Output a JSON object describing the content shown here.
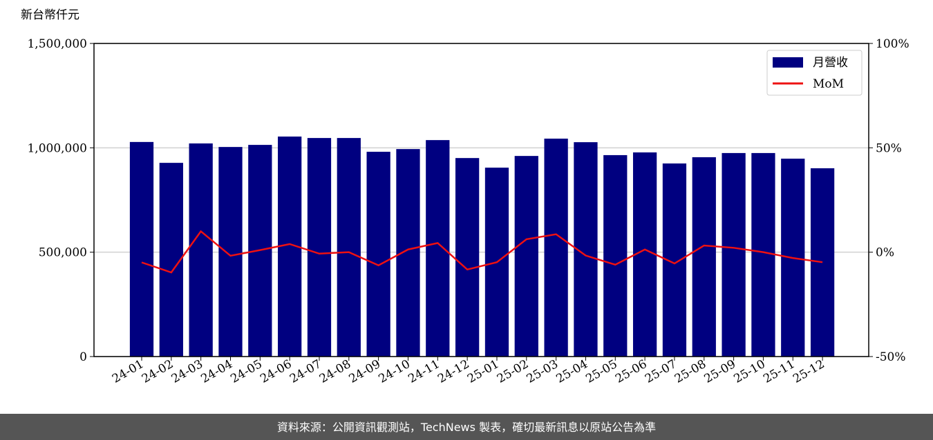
{
  "chart_data": {
    "type": "bar",
    "y_label": "新台幣仟元",
    "categories": [
      "24-01",
      "24-02",
      "24-03",
      "24-04",
      "24-05",
      "24-06",
      "24-07",
      "24-08",
      "24-09",
      "24-10",
      "24-11",
      "24-12",
      "25-01",
      "25-02",
      "25-03",
      "25-04",
      "25-05",
      "25-06",
      "25-07",
      "25-08",
      "25-09",
      "25-10",
      "25-11",
      "25-12"
    ],
    "series": [
      {
        "name": "月營收",
        "color": "#000080",
        "type": "bar",
        "values": [
          1028000,
          928000,
          1021000,
          1004000,
          1014000,
          1054000,
          1047000,
          1047000,
          981000,
          994000,
          1037000,
          951000,
          905000,
          961000,
          1044000,
          1027000,
          965000,
          978000,
          925000,
          955000,
          975000,
          975000,
          948000,
          902000
        ]
      },
      {
        "name": "MoM",
        "color": "#ee1111",
        "type": "line",
        "axis": "y2",
        "values": [
          -4.9,
          -9.7,
          10.0,
          -1.7,
          1.0,
          3.9,
          -0.7,
          0.0,
          -6.3,
          1.3,
          4.4,
          -8.3,
          -4.8,
          6.2,
          8.6,
          -1.6,
          -6.0,
          1.3,
          -5.4,
          3.2,
          2.1,
          0.0,
          -2.8,
          -4.8
        ]
      }
    ],
    "ylim": [
      0,
      1500000
    ],
    "yticks": [
      0,
      {
        "value": 500000,
        "label": "500,000"
      },
      {
        "value": 1000000,
        "label": "1,000,000"
      },
      {
        "value": 1500000,
        "label": "1,500,000"
      }
    ],
    "y2lim": [
      -50,
      100
    ],
    "y2ticks": [
      {
        "value": -50,
        "label": "-50%"
      },
      {
        "value": 0,
        "label": "0%"
      },
      {
        "value": 50,
        "label": "50%"
      },
      {
        "value": 100,
        "label": "100%"
      }
    ],
    "grid": true,
    "legend": "upper right"
  },
  "footer": "資料來源：公開資訊觀測站，TechNews 製表，確切最新訊息以原站公告為準"
}
